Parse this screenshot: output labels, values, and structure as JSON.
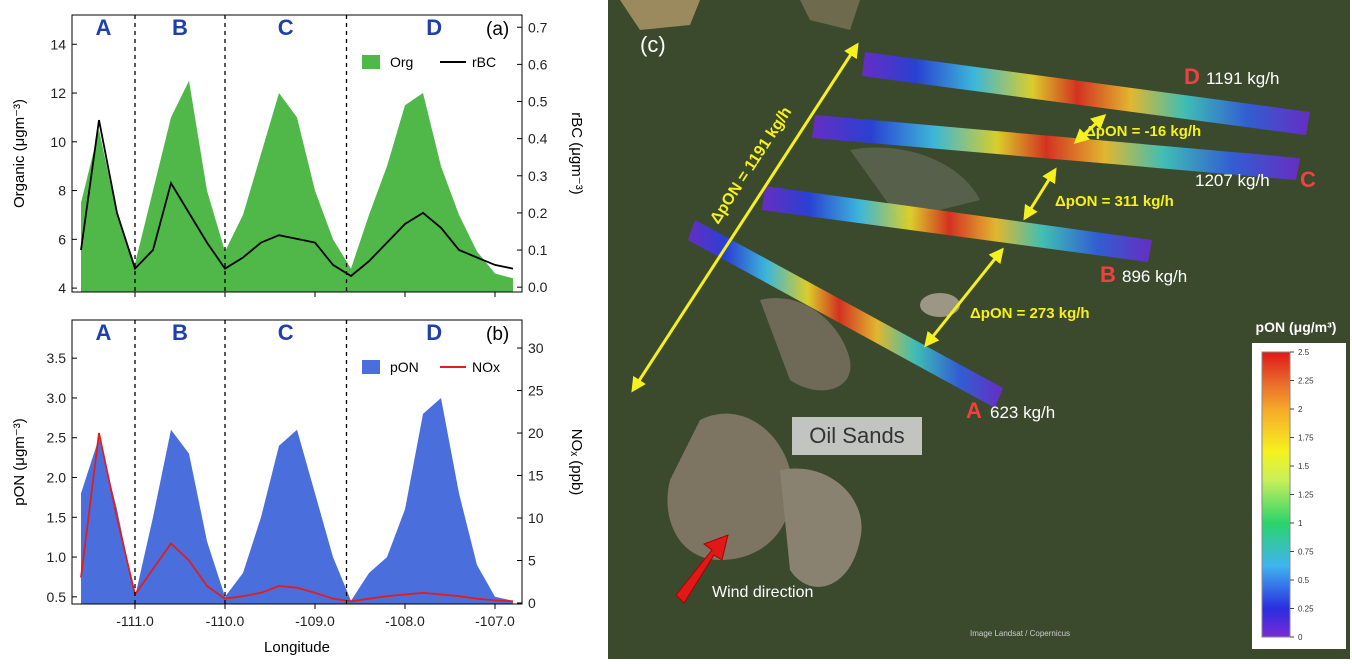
{
  "chart_data": [
    {
      "type": "area_line",
      "panel": "(a)",
      "ylabel": "Organic (μgm⁻³)",
      "y2label": "rBC (μgm⁻³)",
      "x": [
        -111.6,
        -111.4,
        -111.2,
        -111.0,
        -110.8,
        -110.6,
        -110.4,
        -110.2,
        -110.0,
        -109.8,
        -109.6,
        -109.4,
        -109.2,
        -109.0,
        -108.8,
        -108.6,
        -108.4,
        -108.2,
        -108.0,
        -107.8,
        -107.6,
        -107.4,
        -107.2,
        -107.0,
        -106.8
      ],
      "series": [
        {
          "name": "Org",
          "style": "area",
          "color": "#4fb848",
          "values": [
            7.5,
            10.5,
            7.0,
            5.0,
            8.0,
            11.0,
            12.5,
            8.0,
            5.5,
            7.0,
            9.5,
            12.0,
            11.0,
            8.0,
            6.0,
            4.8,
            7.0,
            9.0,
            11.5,
            12.0,
            9.0,
            7.0,
            5.5,
            4.6,
            4.4
          ]
        },
        {
          "name": "rBC",
          "style": "line",
          "axis": "y2",
          "color": "#000000",
          "values": [
            0.1,
            0.45,
            0.2,
            0.05,
            0.1,
            0.28,
            0.2,
            0.12,
            0.05,
            0.08,
            0.12,
            0.14,
            0.13,
            0.12,
            0.06,
            0.03,
            0.07,
            0.12,
            0.17,
            0.2,
            0.16,
            0.1,
            0.08,
            0.06,
            0.05
          ]
        }
      ],
      "dividers": [
        -111.0,
        -110.0,
        -108.65
      ],
      "sections": [
        "A",
        "B",
        "C",
        "D"
      ],
      "xlim": [
        -111.7,
        -106.7
      ],
      "xticks": [
        {
          "value": -111,
          "label": "-111.0"
        },
        {
          "value": -110,
          "label": "-110.0"
        },
        {
          "value": -109,
          "label": "-109.0"
        },
        {
          "value": -108,
          "label": "-108.0"
        },
        {
          "value": -107,
          "label": "-107.0"
        }
      ],
      "xticklabels": false,
      "ylim": [
        3.84,
        15.2
      ],
      "yticks": [
        4,
        6,
        8,
        10,
        12,
        14
      ],
      "y2lim": [
        -0.013,
        0.733
      ],
      "y2ticks": [
        {
          "value": 0,
          "label": "0.0"
        },
        0.1,
        0.2,
        0.3,
        0.4,
        0.5,
        0.6,
        0.7
      ],
      "legend": "upper right"
    },
    {
      "type": "area_line",
      "panel": "(b)",
      "ylabel": "pON (μgm⁻³)",
      "y2label": "NOₓ (ppb)",
      "xlabel": "Longitude",
      "x": [
        -111.6,
        -111.4,
        -111.2,
        -111.0,
        -110.8,
        -110.6,
        -110.4,
        -110.2,
        -110.0,
        -109.8,
        -109.6,
        -109.4,
        -109.2,
        -109.0,
        -108.8,
        -108.6,
        -108.4,
        -108.2,
        -108.0,
        -107.8,
        -107.6,
        -107.4,
        -107.2,
        -107.0,
        -106.8
      ],
      "series": [
        {
          "name": "pON",
          "style": "area",
          "color": "#4a6fdc",
          "values": [
            1.8,
            2.5,
            1.6,
            0.5,
            1.5,
            2.6,
            2.3,
            1.2,
            0.5,
            0.8,
            1.5,
            2.4,
            2.6,
            1.8,
            1.0,
            0.45,
            0.8,
            1.0,
            1.6,
            2.8,
            3.0,
            1.8,
            0.9,
            0.5,
            0.45
          ]
        },
        {
          "name": "NOx",
          "style": "line",
          "axis": "y2",
          "color": "#e01e1e",
          "values": [
            3,
            20,
            10,
            1,
            4,
            7,
            5,
            2,
            0.5,
            0.8,
            1.2,
            2,
            1.8,
            1.2,
            0.5,
            0.2,
            0.5,
            0.8,
            1,
            1.2,
            1,
            0.8,
            0.5,
            0.3,
            0.2
          ]
        }
      ],
      "dividers": [
        -111.0,
        -110.0,
        -108.65
      ],
      "sections": [
        "A",
        "B",
        "C",
        "D"
      ],
      "xlim": [
        -111.7,
        -106.7
      ],
      "xticks": [
        {
          "value": -111,
          "label": "-111.0"
        },
        {
          "value": -110,
          "label": "-110.0"
        },
        {
          "value": -109,
          "label": "-109.0"
        },
        {
          "value": -108,
          "label": "-108.0"
        },
        {
          "value": -107,
          "label": "-107.0"
        }
      ],
      "xticklabels": true,
      "ylim": [
        0.41,
        3.98
      ],
      "yticks": [
        0.5,
        {
          "value": 1,
          "label": "1.0"
        },
        1.5,
        {
          "value": 2,
          "label": "2.0"
        },
        2.5,
        {
          "value": 3,
          "label": "3.0"
        },
        3.5
      ],
      "y2lim": [
        -0.12,
        33.3
      ],
      "y2ticks": [
        0,
        5,
        10,
        15,
        20,
        25,
        30
      ],
      "legend": "upper right"
    }
  ],
  "map": {
    "panel": "(c)",
    "transects": [
      {
        "letter": "D",
        "flux": "1191 kg/h"
      },
      {
        "letter": "C",
        "flux": "1207 kg/h"
      },
      {
        "letter": "B",
        "flux": "896 kg/h"
      },
      {
        "letter": "A",
        "flux": "623 kg/h"
      }
    ],
    "differences": [
      "ΔpON = -16 kg/h",
      "ΔpON = 311 kg/h",
      "ΔpON = 273 kg/h",
      "ΔpON = 1191 kg/h"
    ],
    "site": "Oil Sands",
    "wind": "Wind direction",
    "credit": "Image Landsat / Copernicus",
    "colorbar": {
      "title": "pON (μg/m³)",
      "range": [
        0,
        2.5
      ],
      "ticks": [
        0,
        0.25,
        0.5,
        0.75,
        1,
        1.25,
        1.5,
        1.75,
        2,
        2.25,
        2.5
      ]
    }
  }
}
